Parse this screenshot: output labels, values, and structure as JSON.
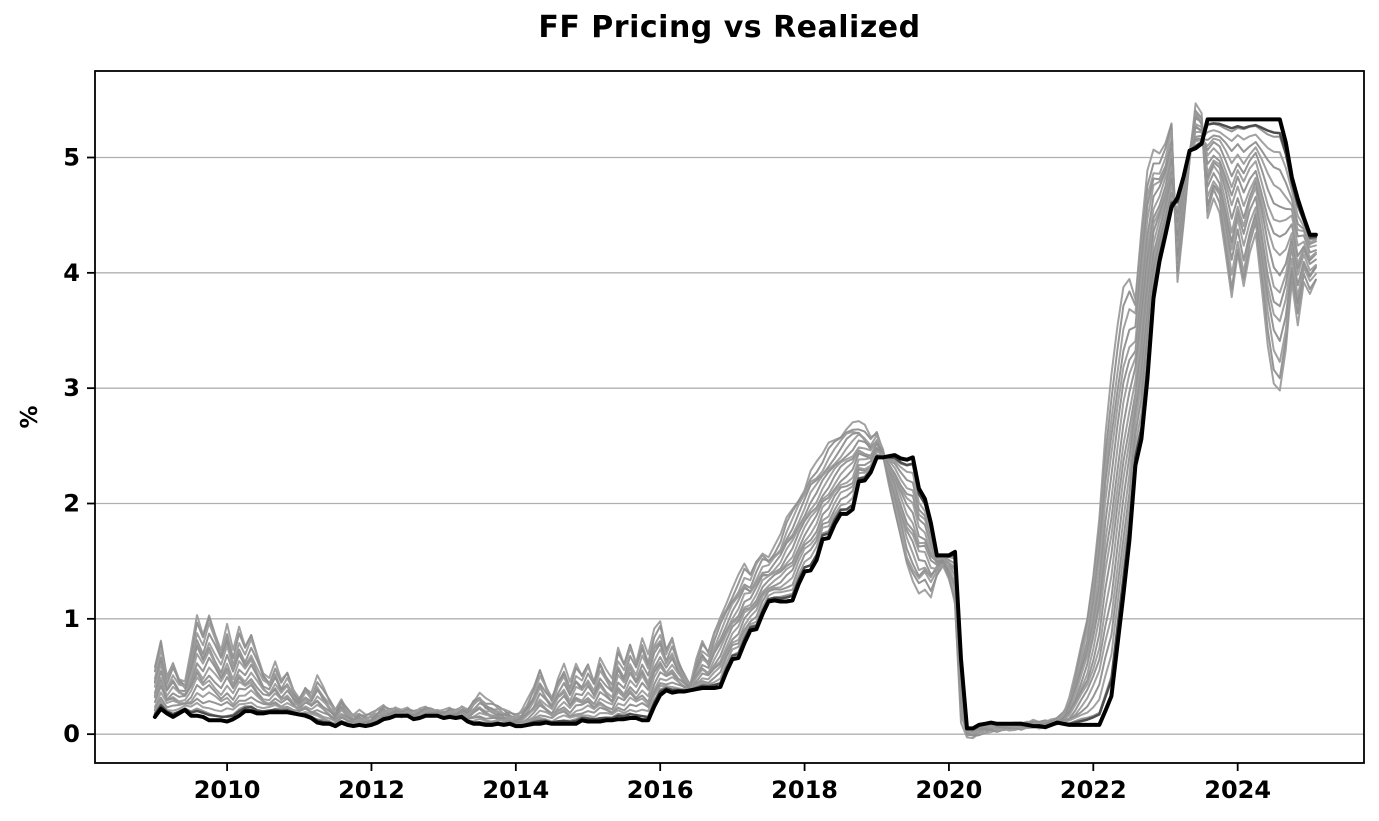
{
  "title": "FF Pricing vs Realized",
  "axes": {
    "ylabel": "%",
    "x_ticks": [
      2010,
      2012,
      2014,
      2016,
      2018,
      2020,
      2022,
      2024
    ],
    "y_ticks": [
      0,
      1,
      2,
      3,
      4,
      5
    ],
    "x_range": [
      2008.17,
      2025.75
    ],
    "y_range": [
      -0.25,
      5.75
    ],
    "grid_color": "#b0b0b0",
    "axis_color": "#000000"
  },
  "chart_data": {
    "type": "line",
    "title": "FF Pricing vs Realized",
    "xlabel": "",
    "ylabel": "%",
    "legend": "none",
    "grid": "horizontal-only",
    "x_start": 2009.0,
    "x_step": 0.0833333,
    "x_end": 2025.083,
    "series": [
      {
        "name": "Realized FF rate",
        "color": "#000000",
        "width": 4,
        "values": [
          0.15,
          0.22,
          0.18,
          0.15,
          0.18,
          0.21,
          0.16,
          0.16,
          0.15,
          0.12,
          0.12,
          0.12,
          0.11,
          0.13,
          0.16,
          0.2,
          0.2,
          0.18,
          0.18,
          0.19,
          0.19,
          0.19,
          0.19,
          0.18,
          0.17,
          0.16,
          0.14,
          0.1,
          0.09,
          0.09,
          0.07,
          0.1,
          0.08,
          0.07,
          0.08,
          0.07,
          0.08,
          0.1,
          0.13,
          0.14,
          0.16,
          0.16,
          0.16,
          0.13,
          0.14,
          0.16,
          0.16,
          0.16,
          0.14,
          0.15,
          0.14,
          0.15,
          0.11,
          0.09,
          0.09,
          0.08,
          0.08,
          0.09,
          0.08,
          0.09,
          0.07,
          0.07,
          0.08,
          0.09,
          0.09,
          0.1,
          0.09,
          0.09,
          0.09,
          0.09,
          0.09,
          0.12,
          0.11,
          0.11,
          0.11,
          0.12,
          0.12,
          0.13,
          0.13,
          0.14,
          0.14,
          0.12,
          0.12,
          0.24,
          0.34,
          0.38,
          0.36,
          0.37,
          0.37,
          0.38,
          0.39,
          0.4,
          0.4,
          0.4,
          0.41,
          0.54,
          0.65,
          0.66,
          0.79,
          0.9,
          0.91,
          1.04,
          1.15,
          1.16,
          1.15,
          1.15,
          1.16,
          1.3,
          1.41,
          1.42,
          1.51,
          1.69,
          1.7,
          1.82,
          1.91,
          1.91,
          1.95,
          2.19,
          2.2,
          2.27,
          2.4,
          2.4,
          2.41,
          2.42,
          2.39,
          2.38,
          2.4,
          2.13,
          2.04,
          1.83,
          1.55,
          1.55,
          1.55,
          1.58,
          0.65,
          0.05,
          0.05,
          0.08,
          0.09,
          0.1,
          0.09,
          0.09,
          0.09,
          0.09,
          0.09,
          0.08,
          0.07,
          0.07,
          0.06,
          0.08,
          0.1,
          0.09,
          0.08,
          0.08,
          0.08,
          0.08,
          0.08,
          0.08,
          0.2,
          0.33,
          0.77,
          1.21,
          1.68,
          2.33,
          2.56,
          3.08,
          3.78,
          4.1,
          4.33,
          4.57,
          4.65,
          4.83,
          5.06,
          5.08,
          5.12,
          5.33,
          5.33,
          5.33,
          5.33,
          5.33,
          5.33,
          5.33,
          5.33,
          5.33,
          5.33,
          5.33,
          5.33,
          5.33,
          5.13,
          4.83,
          4.64,
          4.48,
          4.33,
          4.33
        ]
      },
      {
        "name": "FF futures pricing (far-horizon envelope)",
        "color": "#969696",
        "width": 2,
        "values": [
          0.55,
          0.8,
          0.5,
          0.65,
          0.5,
          0.45,
          0.7,
          1.0,
          0.85,
          1.05,
          0.9,
          0.75,
          0.95,
          0.7,
          0.9,
          0.75,
          0.88,
          0.72,
          0.55,
          0.48,
          0.6,
          0.44,
          0.52,
          0.38,
          0.3,
          0.42,
          0.35,
          0.48,
          0.38,
          0.28,
          0.2,
          0.3,
          0.22,
          0.16,
          0.18,
          0.14,
          0.16,
          0.2,
          0.24,
          0.2,
          0.22,
          0.18,
          0.2,
          0.17,
          0.2,
          0.22,
          0.2,
          0.19,
          0.18,
          0.2,
          0.18,
          0.22,
          0.2,
          0.3,
          0.35,
          0.28,
          0.25,
          0.22,
          0.2,
          0.18,
          0.16,
          0.2,
          0.28,
          0.38,
          0.55,
          0.42,
          0.32,
          0.5,
          0.6,
          0.42,
          0.58,
          0.5,
          0.62,
          0.48,
          0.68,
          0.55,
          0.45,
          0.72,
          0.6,
          0.8,
          0.65,
          0.85,
          0.68,
          0.88,
          0.95,
          0.72,
          0.85,
          0.65,
          0.52,
          0.42,
          0.62,
          0.78,
          0.7,
          0.9,
          1.05,
          1.15,
          1.25,
          1.35,
          1.45,
          1.38,
          1.52,
          1.6,
          1.55,
          1.62,
          1.7,
          1.85,
          1.95,
          2.05,
          2.15,
          2.3,
          2.35,
          2.4,
          2.5,
          2.55,
          2.6,
          2.68,
          2.72,
          2.7,
          2.65,
          2.55,
          2.6,
          2.45,
          2.2,
          1.95,
          1.7,
          1.45,
          1.3,
          1.22,
          1.28,
          1.22,
          1.4,
          1.48,
          1.35,
          1.1,
          0.1,
          0.0,
          0.0,
          0.02,
          0.03,
          0.04,
          0.04,
          0.05,
          0.06,
          0.07,
          0.07,
          0.08,
          0.09,
          0.08,
          0.09,
          0.1,
          0.12,
          0.18,
          0.3,
          0.5,
          0.75,
          1.0,
          1.4,
          1.9,
          2.6,
          3.1,
          3.5,
          3.85,
          3.95,
          3.8,
          4.4,
          4.9,
          5.05,
          5.0,
          5.1,
          5.3,
          3.95,
          4.45,
          5.0,
          5.45,
          5.35,
          4.45,
          4.65,
          4.55,
          4.2,
          3.8,
          4.15,
          3.85,
          4.15,
          4.35,
          3.9,
          3.4,
          3.05,
          2.96,
          3.3,
          3.9,
          3.55,
          3.95,
          3.85,
          3.95
        ]
      }
    ],
    "pricing_fan": {
      "horizons": 16,
      "line_color_a": "#8f8f8f",
      "line_color_b": "#9c9c9c",
      "near_line_color": "#4d4d4d",
      "near_line_weight": 0.05,
      "wiggle_amp": 0.035
    }
  }
}
